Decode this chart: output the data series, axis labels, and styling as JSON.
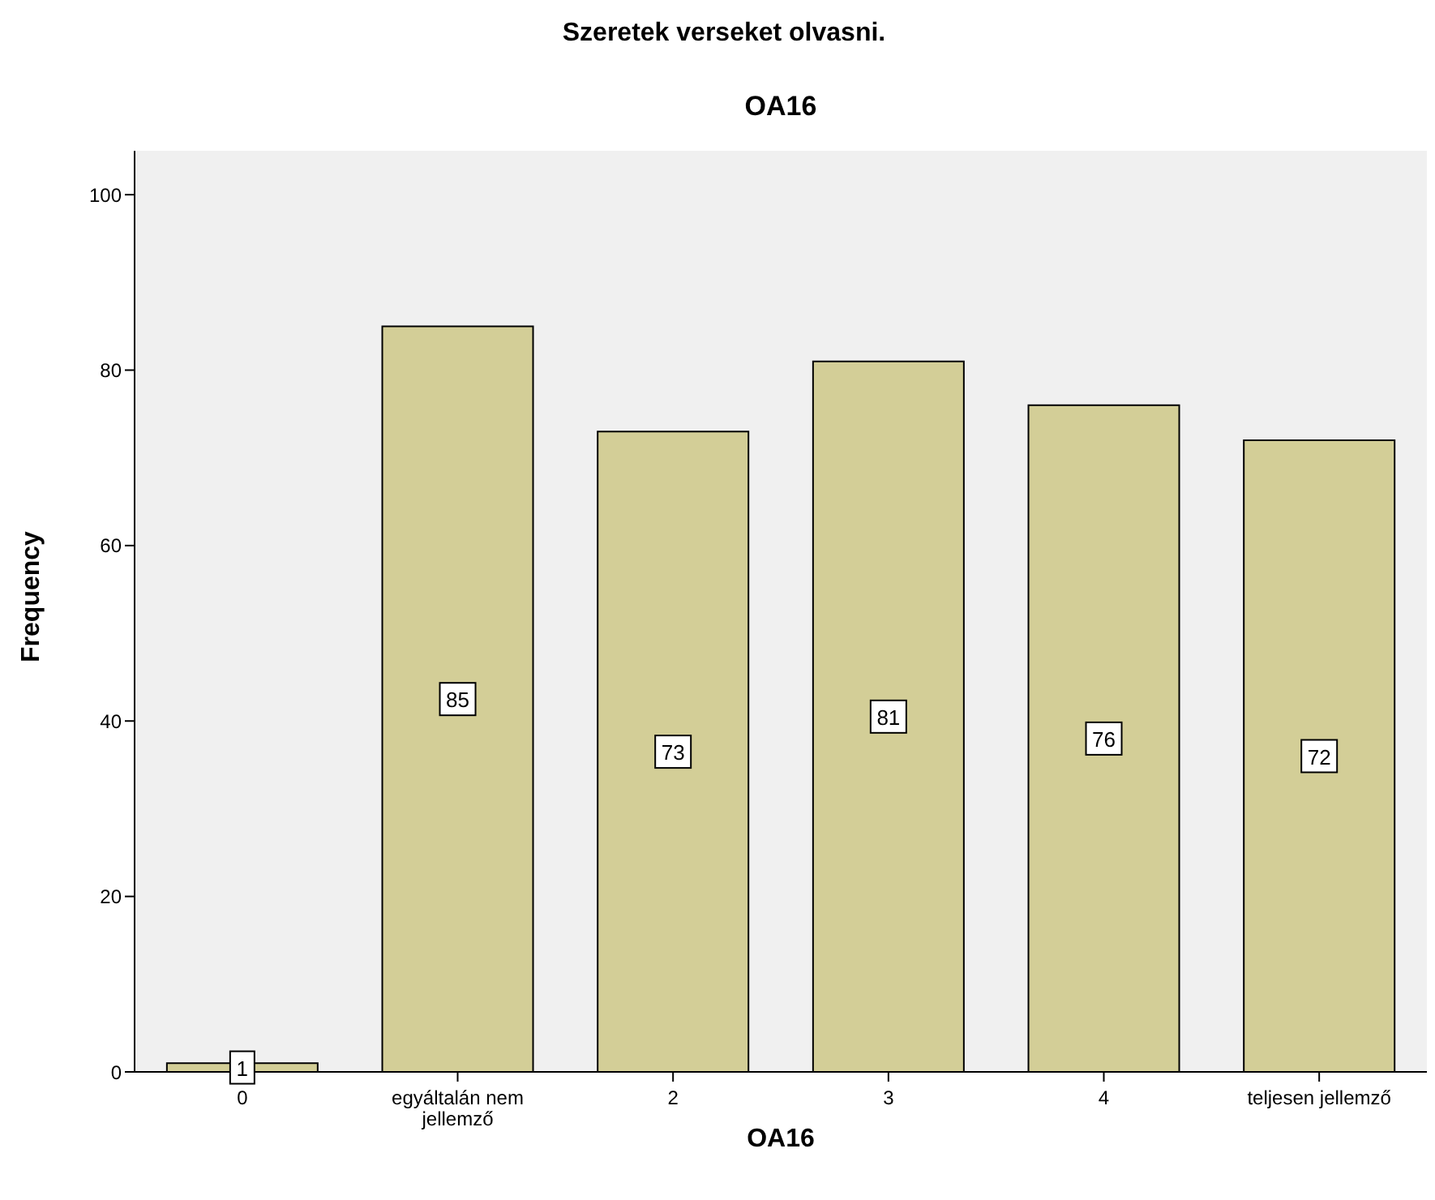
{
  "chart_data": {
    "type": "bar",
    "title": "Szeretek verseket olvasni.",
    "subtitle": "OA16",
    "xlabel": "OA16",
    "ylabel": "Frequency",
    "categories": [
      "0",
      "egyáltalán nem jellemző",
      "2",
      "3",
      "4",
      "teljesen jellemző"
    ],
    "values": [
      1,
      85,
      73,
      81,
      76,
      72
    ],
    "color": "#d3ce97",
    "ylim": [
      0,
      105
    ],
    "yticks": [
      0,
      20,
      40,
      60,
      80,
      100
    ],
    "grid": false,
    "data_labels": true
  }
}
